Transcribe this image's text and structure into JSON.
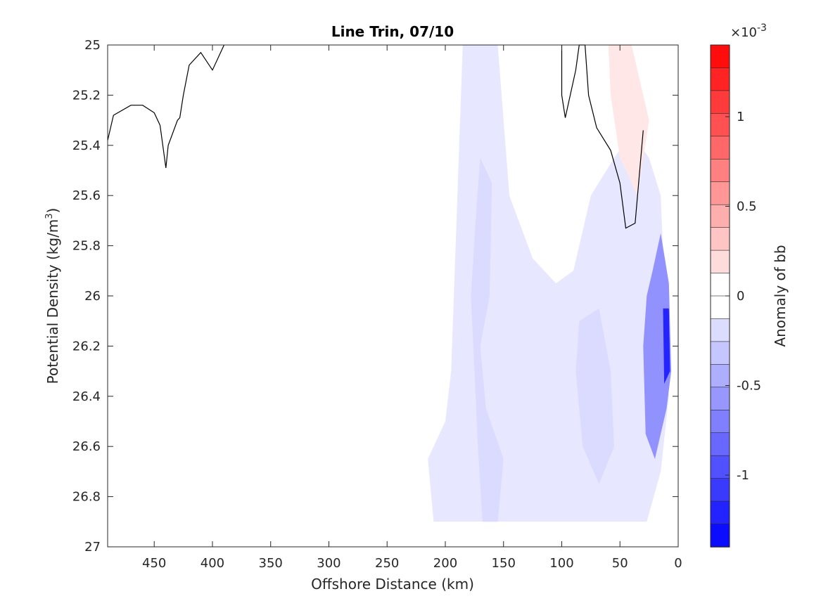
{
  "chart_data": {
    "type": "contour",
    "title": "Line Trin, 07/10",
    "xlabel": "Offshore Distance (km)",
    "ylabel_main": "Potential Density (kg/m",
    "ylabel_sup": "3",
    "ylabel_close": ")",
    "xlim": [
      490,
      0
    ],
    "ylim": [
      25,
      27
    ],
    "x_reversed": true,
    "y_reversed": true,
    "x_ticks": [
      450,
      400,
      350,
      300,
      250,
      200,
      150,
      100,
      50,
      0
    ],
    "x_tick_labels": [
      "450",
      "400",
      "350",
      "300",
      "250",
      "200",
      "150",
      "100",
      "50",
      "0"
    ],
    "y_ticks": [
      25,
      25.2,
      25.4,
      25.6,
      25.8,
      26,
      26.2,
      26.4,
      26.6,
      26.8,
      27
    ],
    "y_tick_labels": [
      "25",
      "25.2",
      "25.4",
      "25.6",
      "25.8",
      "26",
      "26.2",
      "26.4",
      "26.6",
      "26.8",
      "27"
    ],
    "colorbar": {
      "label": "Anomaly of bb",
      "exponent_base": "×10",
      "exponent_power": "-3",
      "min": -1.4,
      "max": 1.4,
      "levels": 22,
      "ticks": [
        1,
        0.5,
        0,
        -0.5,
        -1
      ],
      "tick_labels": [
        "1",
        "0.5",
        "0",
        "-0.5",
        "-1"
      ],
      "color_low": "#0000ff",
      "color_mid": "#ffffff",
      "color_high": "#ff0000"
    },
    "regions": [
      {
        "name": "weak negative anomaly (~ -0.1)",
        "value": -0.13,
        "points": [
          [
            185,
            25
          ],
          [
            155,
            25
          ],
          [
            145,
            25.6
          ],
          [
            125,
            25.85
          ],
          [
            105,
            25.95
          ],
          [
            90,
            25.9
          ],
          [
            75,
            25.6
          ],
          [
            55,
            25.45
          ],
          [
            40,
            25.35
          ],
          [
            25,
            25.45
          ],
          [
            15,
            25.6
          ],
          [
            8,
            26.4
          ],
          [
            15,
            26.7
          ],
          [
            27,
            26.9
          ],
          [
            95,
            26.9
          ],
          [
            150,
            26.9
          ],
          [
            210,
            26.9
          ],
          [
            215,
            26.65
          ],
          [
            200,
            26.5
          ],
          [
            195,
            26.3
          ]
        ]
      },
      {
        "name": "moderate negative anomaly",
        "value": -0.2,
        "points": [
          [
            170,
            25.45
          ],
          [
            160,
            25.55
          ],
          [
            162,
            26.0
          ],
          [
            170,
            26.2
          ],
          [
            165,
            26.45
          ],
          [
            150,
            26.65
          ],
          [
            155,
            26.9
          ],
          [
            168,
            26.9
          ],
          [
            172,
            26.6
          ],
          [
            175,
            26.3
          ],
          [
            178,
            26.0
          ],
          [
            174,
            25.7
          ]
        ]
      },
      {
        "name": "moderate negative anomaly",
        "value": -0.2,
        "points": [
          [
            85,
            26.1
          ],
          [
            68,
            26.05
          ],
          [
            58,
            26.3
          ],
          [
            55,
            26.6
          ],
          [
            68,
            26.75
          ],
          [
            82,
            26.6
          ],
          [
            88,
            26.3
          ]
        ]
      },
      {
        "name": "coastal negative anomaly",
        "value": -0.6,
        "points": [
          [
            22,
            25.9
          ],
          [
            15,
            25.75
          ],
          [
            8,
            25.95
          ],
          [
            6,
            26.3
          ],
          [
            10,
            26.45
          ],
          [
            20,
            26.65
          ],
          [
            28,
            26.55
          ],
          [
            30,
            26.2
          ],
          [
            27,
            26.0
          ]
        ]
      },
      {
        "name": "strong coastal negative anomaly",
        "value": -1.2,
        "points": [
          [
            13,
            26.05
          ],
          [
            8,
            26.05
          ],
          [
            7,
            26.3
          ],
          [
            12,
            26.35
          ]
        ]
      },
      {
        "name": "weak positive anomaly",
        "value": 0.13,
        "points": [
          [
            60,
            25.0
          ],
          [
            40,
            25.0
          ],
          [
            25,
            25.3
          ],
          [
            35,
            25.6
          ],
          [
            50,
            25.45
          ],
          [
            58,
            25.2
          ]
        ]
      }
    ],
    "contour_lines": [
      {
        "name": "zero contour (offshore)",
        "points": [
          [
            490,
            25.38
          ],
          [
            485,
            25.28
          ],
          [
            470,
            25.24
          ],
          [
            460,
            25.24
          ],
          [
            450,
            25.27
          ],
          [
            445,
            25.32
          ],
          [
            440,
            25.49
          ],
          [
            438,
            25.4
          ],
          [
            430,
            25.3
          ],
          [
            428,
            25.29
          ],
          [
            425,
            25.2
          ],
          [
            420,
            25.08
          ],
          [
            410,
            25.03
          ],
          [
            400,
            25.1
          ],
          [
            390,
            25.0
          ]
        ]
      },
      {
        "name": "zero contour (nearshore)",
        "points": [
          [
            100,
            25.0
          ],
          [
            100,
            25.2
          ],
          [
            97,
            25.29
          ],
          [
            88,
            25.1
          ],
          [
            85,
            25.0
          ],
          [
            80,
            25.0
          ],
          [
            77,
            25.2
          ],
          [
            70,
            25.33
          ],
          [
            58,
            25.42
          ],
          [
            50,
            25.55
          ],
          [
            45,
            25.73
          ],
          [
            37,
            25.71
          ],
          [
            30,
            25.34
          ]
        ]
      }
    ]
  }
}
